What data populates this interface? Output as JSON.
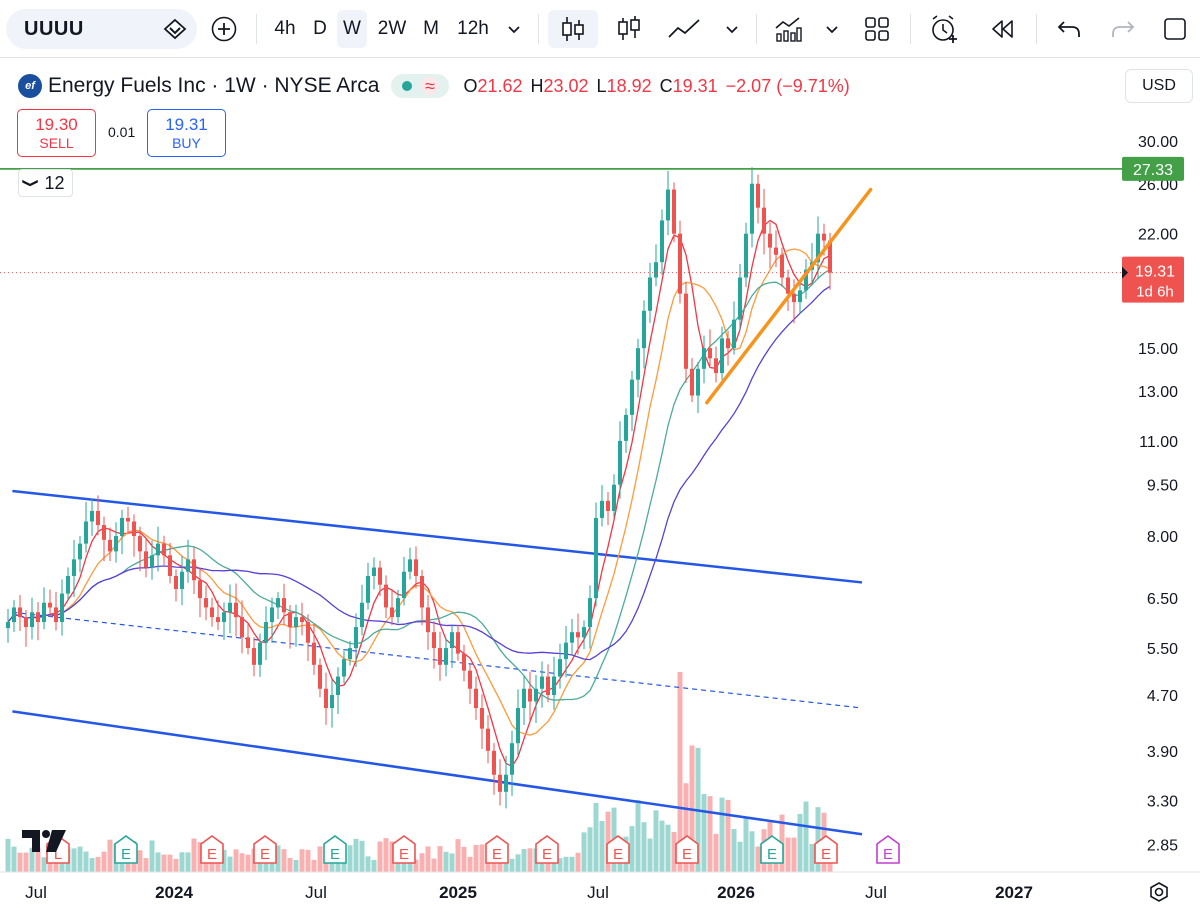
{
  "toolbar": {
    "symbol": "UUUU",
    "intervals": [
      "4h",
      "D",
      "W",
      "2W",
      "M",
      "12h"
    ],
    "active_interval": "W",
    "icons": [
      "symbol-search-icon",
      "add-compare-icon",
      "interval-dropdown-icon",
      "candles-icon",
      "bars-icon",
      "line-style-icon",
      "chart-style-dropdown-icon",
      "indicators-icon",
      "indicators-dropdown-icon",
      "layout-icon",
      "alert-icon",
      "replay-icon",
      "undo-icon",
      "redo-icon",
      "fullscreen-icon"
    ]
  },
  "legend": {
    "title": "Energy Fuels Inc · 1W · NYSE Arca",
    "logo_text": "ef",
    "wave": "≈",
    "open_label": "O",
    "open": "21.62",
    "high_label": "H",
    "high": "23.02",
    "low_label": "L",
    "low": "18.92",
    "close_label": "C",
    "close": "19.31",
    "change": "−2.07 (−9.71%)"
  },
  "trade": {
    "sell_price": "19.30",
    "sell_label": "SELL",
    "spread": "0.01",
    "buy_price": "19.31",
    "buy_label": "BUY",
    "indicators_count": "12",
    "chevron": "❯"
  },
  "currency": "USD",
  "colors": {
    "up": "#26a69a",
    "down": "#ef5350",
    "ma_fast": "#f23645",
    "ma_mid": "#ff9a3c",
    "ma_slow": "#4dab9a",
    "ma_long": "#5b3fd6",
    "channel": "#2457e6",
    "resistance": "#43a047",
    "trendline": "#f7941d"
  },
  "chart_data": {
    "type": "candlestick",
    "scale": "log",
    "ylim": [
      2.6,
      33.5
    ],
    "y_ticks": [
      "30.00",
      "26.00",
      "22.00",
      "15.00",
      "13.00",
      "11.00",
      "9.50",
      "8.00",
      "6.50",
      "5.50",
      "4.70",
      "3.90",
      "3.30",
      "2.85"
    ],
    "x_ticks": [
      "Jul",
      "2024",
      "Jul",
      "2025",
      "Jul",
      "2026",
      "Jul",
      "2027"
    ],
    "last_price_label": "19.31",
    "countdown_label": "1d 6h",
    "resistance_label": "27.33",
    "resistance": 27.33,
    "channel_upper": [
      {
        "date": "2023-06",
        "value": 9.3
      },
      {
        "date": "2026-06",
        "value": 6.85
      }
    ],
    "channel_mid": [
      {
        "date": "2023-06",
        "value": 6.2
      },
      {
        "date": "2026-06",
        "value": 4.5
      }
    ],
    "channel_lower": [
      {
        "date": "2023-06",
        "value": 4.45
      },
      {
        "date": "2026-06",
        "value": 2.95
      }
    ],
    "trendline": [
      {
        "date": "2025-11",
        "value": 12.5
      },
      {
        "date": "2026-07",
        "value": 25.5
      }
    ],
    "event_markers": [
      {
        "label": "L",
        "type": "dividend"
      },
      {
        "label": "E",
        "type": "past-earnings-green"
      },
      {
        "label": "E",
        "type": "past-earnings-red"
      },
      {
        "label": "E",
        "type": "past-earnings-red"
      },
      {
        "label": "E",
        "type": "past-earnings-green"
      },
      {
        "label": "E",
        "type": "past-earnings-red"
      },
      {
        "label": "E",
        "type": "past-earnings-red"
      },
      {
        "label": "E",
        "type": "past-earnings-red"
      },
      {
        "label": "E",
        "type": "past-earnings-red"
      },
      {
        "label": "E",
        "type": "past-earnings-red"
      },
      {
        "label": "E",
        "type": "past-earnings-green"
      },
      {
        "label": "E",
        "type": "past-earnings-red"
      },
      {
        "label": "E",
        "type": "upcoming-earnings"
      }
    ],
    "price_path": [
      6.0,
      6.3,
      6.1,
      5.9,
      6.2,
      6.0,
      6.4,
      6.3,
      6.0,
      6.6,
      7.0,
      7.4,
      7.8,
      8.4,
      8.7,
      8.3,
      7.9,
      7.6,
      8.0,
      8.5,
      8.4,
      8.0,
      7.6,
      7.2,
      7.5,
      7.8,
      7.5,
      7.0,
      6.7,
      7.1,
      7.4,
      6.9,
      6.5,
      6.3,
      6.1,
      6.0,
      6.2,
      6.4,
      6.1,
      5.7,
      5.5,
      5.2,
      5.6,
      6.0,
      6.3,
      6.5,
      6.2,
      5.9,
      6.1,
      6.0,
      5.6,
      5.2,
      4.8,
      4.5,
      4.7,
      5.0,
      5.3,
      5.5,
      5.9,
      6.4,
      7.0,
      7.2,
      6.8,
      6.3,
      6.1,
      6.5,
      7.1,
      7.4,
      7.0,
      6.3,
      5.8,
      5.5,
      5.2,
      5.5,
      5.8,
      5.4,
      5.1,
      4.8,
      4.5,
      4.2,
      3.9,
      3.6,
      3.4,
      3.6,
      4.0,
      4.5,
      4.8,
      4.6,
      4.8,
      5.0,
      4.7,
      5.0,
      5.3,
      5.6,
      5.8,
      5.7,
      5.9,
      6.5,
      8.5,
      9.0,
      8.7,
      9.5,
      11.0,
      12.0,
      13.5,
      15.0,
      17.0,
      19.0,
      20.0,
      23.0,
      25.5,
      22.0,
      18.0,
      14.0,
      12.8,
      14.0,
      15.0,
      14.5,
      13.8,
      15.5,
      15.0,
      16.5,
      19.0,
      22.0,
      26.0,
      24.0,
      22.0,
      21.0,
      20.5,
      19.0,
      18.0,
      17.5,
      18.2,
      19.5,
      20.0,
      22.0,
      21.5,
      19.31
    ]
  }
}
